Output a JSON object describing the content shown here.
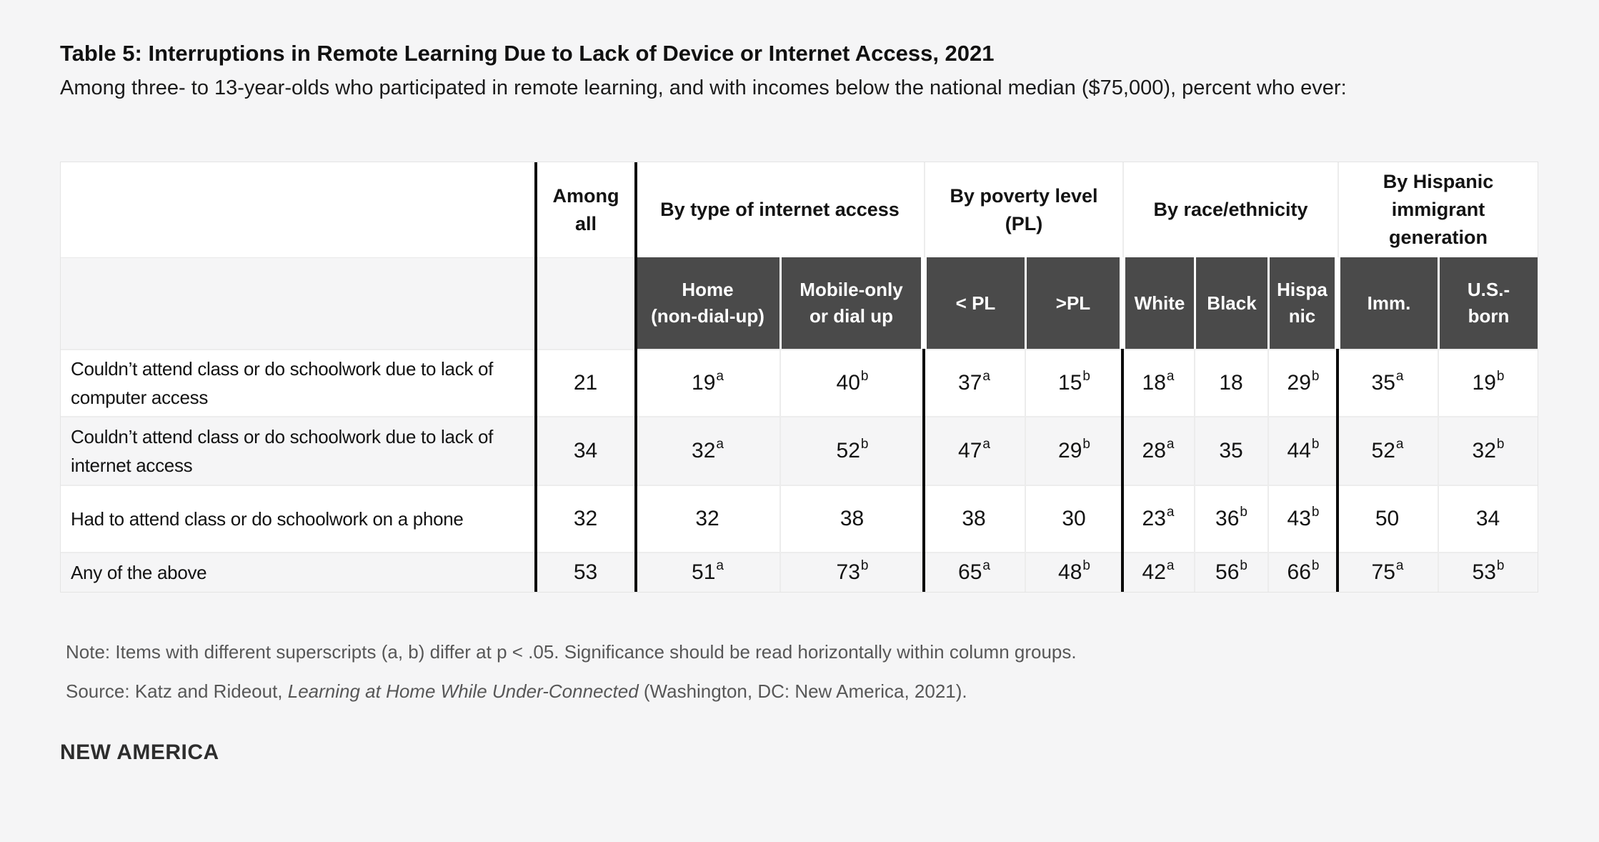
{
  "page": {
    "title": "Table 5: Interruptions in Remote Learning Due to Lack of Device or Internet Access, 2021",
    "subtitle": "Among three- to 13-year-olds who participated in remote learning, and with incomes below the national median ($75,000), percent who ever:",
    "note": "Note: Items with different superscripts (a, b) differ at p < .05. Significance should be read horizontally within column groups.",
    "source_prefix": "Source: Katz and Rideout, ",
    "source_italic": "Learning at Home While Under-Connected",
    "source_suffix": " (Washington, DC: New America, 2021).",
    "brand": "NEW AMERICA"
  },
  "colors": {
    "page_background": "#f5f5f6",
    "table_background": "#ffffff",
    "alt_row": "#f5f5f6",
    "dark_header_cell": "#4a4a4a",
    "dark_header_text": "#ffffff",
    "thick_divider": "#0b0b0b",
    "thin_grid": "#ececec",
    "footnote_text": "#575757"
  },
  "table": {
    "col_group_headers": {
      "among_all": "Among\nall",
      "internet": "By type of internet access",
      "poverty": "By poverty level\n(PL)",
      "race": "By race/ethnicity",
      "hispanic_gen": "By Hispanic\nimmigrant\ngeneration"
    },
    "col_headers": {
      "home": "Home\n(non-dial-up)",
      "mobile": "Mobile-only\nor dial up",
      "below_pl": "< PL",
      "above_pl": ">PL",
      "white": "White",
      "black": "Black",
      "hispanic": "Hispa\nnic",
      "imm": "Imm.",
      "us_born": "U.S.-\nborn"
    },
    "rows": [
      {
        "label": "Couldn’t attend class or do schoolwork due to lack of\ncomputer access",
        "cells": [
          {
            "v": "21",
            "s": ""
          },
          {
            "v": "19",
            "s": "a"
          },
          {
            "v": "40",
            "s": "b"
          },
          {
            "v": "37",
            "s": "a"
          },
          {
            "v": "15",
            "s": "b"
          },
          {
            "v": "18",
            "s": "a"
          },
          {
            "v": "18",
            "s": ""
          },
          {
            "v": "29",
            "s": "b"
          },
          {
            "v": "35",
            "s": "a"
          },
          {
            "v": "19",
            "s": "b"
          }
        ]
      },
      {
        "label": "Couldn’t attend class or do schoolwork due to lack of\ninternet access",
        "cells": [
          {
            "v": "34",
            "s": ""
          },
          {
            "v": "32",
            "s": "a"
          },
          {
            "v": "52",
            "s": "b"
          },
          {
            "v": "47",
            "s": "a"
          },
          {
            "v": "29",
            "s": "b"
          },
          {
            "v": "28",
            "s": "a"
          },
          {
            "v": "35",
            "s": ""
          },
          {
            "v": "44",
            "s": "b"
          },
          {
            "v": "52",
            "s": "a"
          },
          {
            "v": "32",
            "s": "b"
          }
        ]
      },
      {
        "label": "Had to attend class or do schoolwork on a phone",
        "cells": [
          {
            "v": "32",
            "s": ""
          },
          {
            "v": "32",
            "s": ""
          },
          {
            "v": "38",
            "s": ""
          },
          {
            "v": "38",
            "s": ""
          },
          {
            "v": "30",
            "s": ""
          },
          {
            "v": "23",
            "s": "a"
          },
          {
            "v": "36",
            "s": "b"
          },
          {
            "v": "43",
            "s": "b"
          },
          {
            "v": "50",
            "s": ""
          },
          {
            "v": "34",
            "s": ""
          }
        ]
      },
      {
        "label": "Any of the above",
        "cells": [
          {
            "v": "53",
            "s": ""
          },
          {
            "v": "51",
            "s": "a"
          },
          {
            "v": "73",
            "s": "b"
          },
          {
            "v": "65",
            "s": "a"
          },
          {
            "v": "48",
            "s": "b"
          },
          {
            "v": "42",
            "s": "a"
          },
          {
            "v": "56",
            "s": "b"
          },
          {
            "v": "66",
            "s": "b"
          },
          {
            "v": "75",
            "s": "a"
          },
          {
            "v": "53",
            "s": "b"
          }
        ]
      }
    ]
  }
}
